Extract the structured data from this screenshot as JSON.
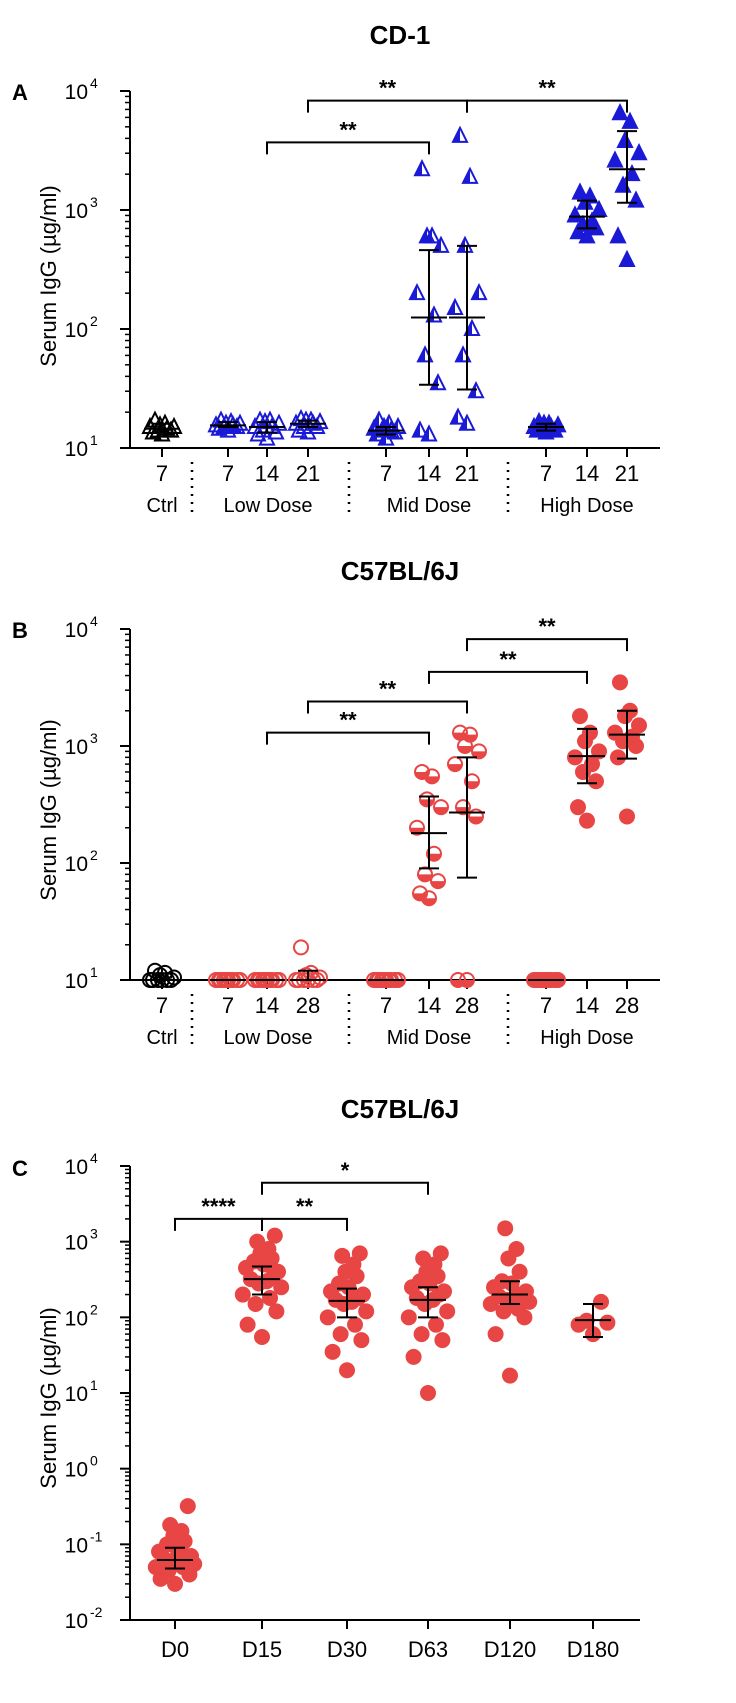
{
  "chart_data": [
    {
      "type": "scatter",
      "panel": "A",
      "title": "CD-1",
      "ylabel": "Serum IgG (µg/ml)",
      "yscale": "log",
      "ylim": [
        10,
        10000
      ],
      "yticks": [
        {
          "base": "10",
          "exp": "1"
        },
        {
          "base": "10",
          "exp": "2"
        },
        {
          "base": "10",
          "exp": "3"
        },
        {
          "base": "10",
          "exp": "4"
        }
      ],
      "x_tick_labels": [
        "7",
        "7",
        "14",
        "21",
        "7",
        "14",
        "21",
        "7",
        "14",
        "21"
      ],
      "groups": [
        {
          "name": "Ctrl",
          "color": "#000000",
          "marker": "open-triangle",
          "days": [
            {
              "day": "7",
              "values": [
                13,
                13.5,
                14,
                14,
                14.5,
                15,
                15,
                15.5,
                16,
                17
              ],
              "median": 14.5,
              "q1": 13.5,
              "q3": 16
            }
          ]
        },
        {
          "name": "Low Dose",
          "color": "#1a1ad6",
          "marker": "open-triangle",
          "days": [
            {
              "day": "7",
              "values": [
                14,
                14.5,
                15,
                15,
                15.5,
                15.5,
                16,
                16,
                16.5,
                17
              ],
              "median": 15.5,
              "q1": 15,
              "q3": 16.5
            },
            {
              "day": "14",
              "values": [
                12,
                13,
                13.5,
                14,
                15,
                15,
                16,
                16.5,
                17,
                17
              ],
              "median": 15,
              "q1": 13.5,
              "q3": 16.5
            },
            {
              "day": "21",
              "values": [
                13.5,
                14,
                15,
                15,
                16,
                16,
                16.5,
                17,
                17,
                17.5
              ],
              "median": 16,
              "q1": 15,
              "q3": 17
            }
          ]
        },
        {
          "name": "Mid Dose",
          "color": "#1a1ad6",
          "marker": "half-filled-triangle",
          "days": [
            {
              "day": "7",
              "values": [
                12,
                13,
                13.5,
                14,
                14,
                14.5,
                15,
                15,
                16,
                17
              ],
              "median": 14,
              "q1": 13,
              "q3": 15
            },
            {
              "day": "14",
              "values": [
                13,
                14,
                35,
                60,
                130,
                200,
                500,
                600,
                600,
                2200
              ],
              "median": 125,
              "q1": 34,
              "q3": 460
            },
            {
              "day": "21",
              "values": [
                16,
                18,
                30,
                60,
                100,
                150,
                200,
                500,
                1900,
                4200
              ],
              "median": 125,
              "q1": 31,
              "q3": 500
            }
          ]
        },
        {
          "name": "High Dose",
          "color": "#1a1ad6",
          "marker": "filled-triangle",
          "days": [
            {
              "day": "7",
              "values": [
                13.5,
                14,
                14,
                14.5,
                15,
                15,
                15.5,
                16,
                16,
                16.5
              ],
              "median": 15,
              "q1": 14,
              "q3": 16
            },
            {
              "day": "14",
              "values": [
                600,
                650,
                700,
                750,
                800,
                900,
                1000,
                1150,
                1300,
                1400
              ],
              "median": 880,
              "q1": 700,
              "q3": 1200
            },
            {
              "day": "21",
              "values": [
                380,
                600,
                1200,
                1600,
                2000,
                2600,
                3000,
                3800,
                5500,
                6500
              ],
              "median": 2200,
              "q1": 1150,
              "q3": 4600
            }
          ]
        }
      ],
      "significance": [
        {
          "label": "**",
          "from": "Low Dose 14",
          "to": "Mid Dose 14",
          "at": 3700
        },
        {
          "label": "**",
          "from": "Low Dose 21",
          "to": "Mid Dose 21",
          "at": 8300
        },
        {
          "label": "**",
          "from": "Mid Dose 21",
          "to": "High Dose 21",
          "at": 8300
        }
      ]
    },
    {
      "type": "scatter",
      "panel": "B",
      "title": "C57BL/6J",
      "ylabel": "Serum IgG (µg/ml)",
      "yscale": "log",
      "ylim": [
        10,
        10000
      ],
      "yticks": [
        {
          "base": "10",
          "exp": "1"
        },
        {
          "base": "10",
          "exp": "2"
        },
        {
          "base": "10",
          "exp": "3"
        },
        {
          "base": "10",
          "exp": "4"
        }
      ],
      "x_tick_labels": [
        "7",
        "7",
        "14",
        "28",
        "7",
        "14",
        "28",
        "7",
        "14",
        "28"
      ],
      "groups": [
        {
          "name": "Ctrl",
          "color": "#000000",
          "marker": "open-circle",
          "days": [
            {
              "day": "7",
              "values": [
                10,
                10,
                10,
                10,
                10,
                10,
                10.5,
                11,
                11.5,
                12
              ],
              "median": 10,
              "q1": 10,
              "q3": 10.5
            }
          ]
        },
        {
          "name": "Low Dose",
          "color": "#e84545",
          "marker": "open-circle",
          "days": [
            {
              "day": "7",
              "values": [
                10,
                10,
                10,
                10,
                10,
                10,
                10,
                10,
                10,
                10
              ],
              "median": 10,
              "q1": 10,
              "q3": 10
            },
            {
              "day": "14",
              "values": [
                10,
                10,
                10,
                10,
                10,
                10,
                10,
                10,
                10,
                10
              ],
              "median": 10,
              "q1": 10,
              "q3": 10
            },
            {
              "day": "28",
              "values": [
                10,
                10,
                10,
                10,
                10,
                10,
                10.5,
                11,
                11.5,
                19
              ],
              "median": 10,
              "q1": 10,
              "q3": 12
            }
          ]
        },
        {
          "name": "Mid Dose",
          "color": "#e84545",
          "marker": "half-filled-circle",
          "days": [
            {
              "day": "7",
              "values": [
                10,
                10,
                10,
                10,
                10,
                10,
                10,
                10,
                10,
                10
              ],
              "median": 10,
              "q1": 10,
              "q3": 10
            },
            {
              "day": "14",
              "values": [
                50,
                55,
                70,
                80,
                120,
                200,
                300,
                350,
                550,
                600
              ],
              "median": 180,
              "q1": 90,
              "q3": 370
            },
            {
              "day": "28",
              "values": [
                10,
                10,
                250,
                300,
                500,
                700,
                900,
                1000,
                1250,
                1300
              ],
              "median": 270,
              "q1": 75,
              "q3": 800
            }
          ]
        },
        {
          "name": "High Dose",
          "color": "#e84545",
          "marker": "filled-circle",
          "days": [
            {
              "day": "7",
              "values": [
                10,
                10,
                10,
                10,
                10,
                10,
                10,
                10,
                10,
                10
              ],
              "median": 10,
              "q1": 10,
              "q3": 10
            },
            {
              "day": "14",
              "values": [
                230,
                300,
                500,
                600,
                700,
                800,
                900,
                1100,
                1300,
                1800
              ],
              "median": 820,
              "q1": 480,
              "q3": 1400
            },
            {
              "day": "28",
              "values": [
                250,
                800,
                1000,
                1100,
                1200,
                1300,
                1500,
                1800,
                2000,
                3500
              ],
              "median": 1250,
              "q1": 780,
              "q3": 2000
            }
          ]
        }
      ],
      "significance": [
        {
          "label": "**",
          "from": "Low Dose 14",
          "to": "Mid Dose 14",
          "at": 1300
        },
        {
          "label": "**",
          "from": "Low Dose 28",
          "to": "Mid Dose 28",
          "at": 2400
        },
        {
          "label": "**",
          "from": "Mid Dose 14",
          "to": "High Dose 14",
          "at": 4300
        },
        {
          "label": "**",
          "from": "Mid Dose 28",
          "to": "High Dose 28",
          "at": 8200
        }
      ]
    },
    {
      "type": "scatter",
      "panel": "C",
      "title": "C57BL/6J",
      "ylabel": "Serum IgG (µg/ml)",
      "yscale": "log",
      "ylim": [
        0.01,
        10000
      ],
      "yticks": [
        {
          "base": "10",
          "exp": "-2"
        },
        {
          "base": "10",
          "exp": "-1"
        },
        {
          "base": "10",
          "exp": "0"
        },
        {
          "base": "10",
          "exp": "1"
        },
        {
          "base": "10",
          "exp": "2"
        },
        {
          "base": "10",
          "exp": "3"
        },
        {
          "base": "10",
          "exp": "4"
        }
      ],
      "categories": [
        "D0",
        "D15",
        "D30",
        "D63",
        "D120",
        "D180"
      ],
      "color": "#e84545",
      "marker": "filled-circle",
      "series": [
        {
          "category": "D0",
          "values": [
            0.03,
            0.035,
            0.04,
            0.045,
            0.05,
            0.05,
            0.055,
            0.06,
            0.06,
            0.065,
            0.07,
            0.07,
            0.08,
            0.09,
            0.1,
            0.11,
            0.13,
            0.15,
            0.18,
            0.32
          ],
          "median": 0.062,
          "q1": 0.048,
          "q3": 0.09
        },
        {
          "category": "D15",
          "values": [
            55,
            80,
            120,
            150,
            180,
            200,
            250,
            280,
            300,
            320,
            350,
            400,
            450,
            500,
            550,
            600,
            700,
            800,
            1000,
            1200
          ],
          "median": 320,
          "q1": 200,
          "q3": 470
        },
        {
          "category": "D30",
          "values": [
            20,
            35,
            50,
            60,
            80,
            100,
            120,
            150,
            160,
            170,
            180,
            200,
            220,
            250,
            280,
            350,
            400,
            500,
            650,
            700
          ],
          "median": 165,
          "q1": 100,
          "q3": 240
        },
        {
          "category": "D63",
          "values": [
            10,
            30,
            50,
            60,
            80,
            100,
            120,
            150,
            170,
            180,
            200,
            220,
            250,
            280,
            300,
            350,
            400,
            500,
            600,
            700
          ],
          "median": 170,
          "q1": 100,
          "q3": 250
        },
        {
          "category": "D120",
          "values": [
            17,
            60,
            100,
            120,
            130,
            150,
            160,
            170,
            180,
            190,
            200,
            220,
            250,
            280,
            300,
            400,
            600,
            800,
            1500,
            180
          ],
          "median": 200,
          "q1": 150,
          "q3": 300
        },
        {
          "category": "D180",
          "values": [
            60,
            80,
            85,
            90,
            160
          ],
          "median": 92,
          "q1": 55,
          "q3": 150
        }
      ],
      "significance": [
        {
          "label": "****",
          "from": "D0",
          "to": "D15",
          "at": 2000
        },
        {
          "label": "**",
          "from": "D15",
          "to": "D30",
          "at": 2000
        },
        {
          "label": "*",
          "from": "D15",
          "to": "D63",
          "at": 6000
        }
      ]
    }
  ]
}
